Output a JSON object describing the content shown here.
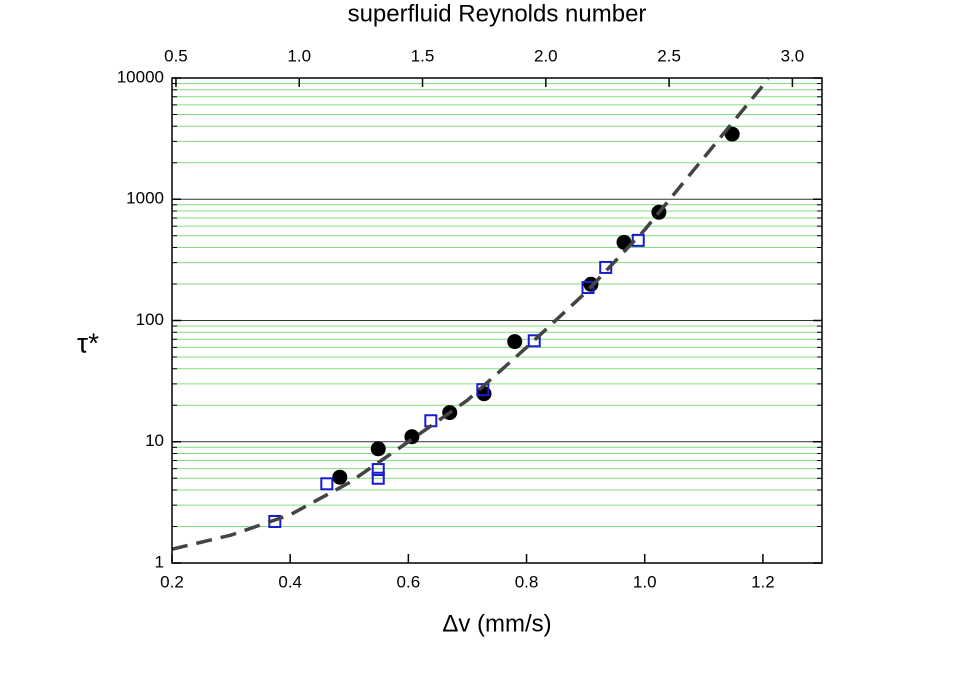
{
  "chart_data": {
    "type": "scatter",
    "xlabel": "Δv (mm/s)",
    "ylabel": "τ*",
    "x2label": "superfluid Reynolds number",
    "xlim": [
      0.2,
      1.3
    ],
    "xticks": [
      0.2,
      0.4,
      0.6,
      0.8,
      {
        "value": 1,
        "label": "1.0"
      },
      1.2
    ],
    "x2lim": [
      0.484,
      3.12
    ],
    "x2ticks": [
      0.5,
      {
        "value": 1,
        "label": "1.0"
      },
      1.5,
      {
        "value": 2,
        "label": "2.0"
      },
      2.5,
      {
        "value": 3,
        "label": "3.0"
      }
    ],
    "ylim": [
      1,
      10000
    ],
    "yticks": [
      1,
      10,
      100,
      1000,
      10000
    ],
    "ylog": true,
    "grid": true,
    "minor_grid_color": "#7fe07f",
    "major_grid_color": "#333333",
    "series": [
      {
        "mode": "markers",
        "marker": "circle",
        "color": "#000000",
        "x": [
          0.484,
          0.549,
          0.606,
          0.67,
          0.728,
          0.78,
          0.909,
          0.965,
          1.024,
          1.148
        ],
        "values": [
          5.1,
          8.75,
          11.0,
          17.4,
          24.9,
          67,
          199,
          441,
          781,
          3445
        ]
      },
      {
        "mode": "markers",
        "marker": "square",
        "color": "#1a1ad0",
        "x": [
          0.374,
          0.462,
          0.549,
          0.549,
          0.638,
          0.726,
          0.813,
          0.904,
          0.934,
          0.989
        ],
        "values": [
          2.2,
          4.5,
          5.9,
          5.0,
          14.9,
          26.9,
          68,
          187,
          274,
          458
        ]
      },
      {
        "mode": "line",
        "dash": true,
        "color": "#444444",
        "x": [
          0.2,
          0.3,
          0.4,
          0.5,
          0.6,
          0.7,
          0.8,
          0.9,
          1.0,
          1.1,
          1.209
        ],
        "values": [
          1.3,
          1.7,
          2.5,
          4.6,
          10,
          22,
          60,
          170,
          560,
          2200,
          9800
        ]
      }
    ]
  }
}
